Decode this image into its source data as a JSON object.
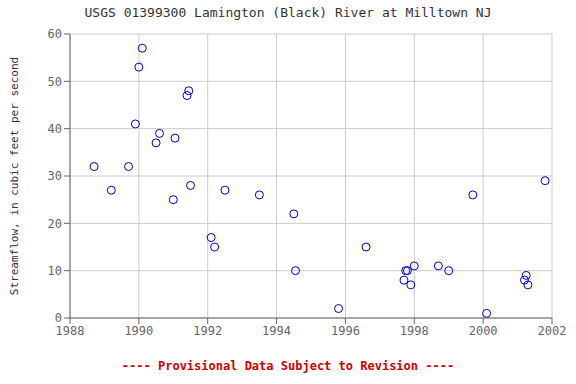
{
  "chart_data": {
    "type": "scatter",
    "title": "USGS 01399300 Lamington (Black) River at Milltown NJ",
    "y_label": "Streamflow, in cubic feet per second",
    "annotations": [
      {
        "text": "---- Provisional Data Subject to Revision ----",
        "color": "#CC0000"
      }
    ],
    "x": [
      1988.7,
      1989.2,
      1989.7,
      1989.9,
      1990.0,
      1990.1,
      1990.5,
      1990.6,
      1991.0,
      1991.05,
      1991.4,
      1991.45,
      1991.5,
      1992.1,
      1992.2,
      1992.5,
      1993.5,
      1994.5,
      1994.55,
      1995.8,
      1996.6,
      1997.7,
      1997.75,
      1997.8,
      1997.9,
      1998.0,
      1998.7,
      1999.0,
      1999.7,
      2000.1,
      2001.2,
      2001.25,
      2001.3,
      2001.8
    ],
    "values": [
      32,
      27,
      32,
      41,
      53,
      57,
      37,
      39,
      25,
      38,
      47,
      48,
      28,
      17,
      15,
      27,
      26,
      22,
      10,
      2,
      15,
      8,
      10,
      10,
      7,
      11,
      11,
      10,
      26,
      1,
      8,
      9,
      7,
      29
    ],
    "color": "#0000CC",
    "marker": "circle",
    "xlim": [
      1988,
      2002
    ],
    "ylim": [
      0,
      60
    ],
    "xticks": [
      1988,
      1990,
      1992,
      1994,
      1996,
      1998,
      2000,
      2002
    ],
    "yticks": [
      0,
      10,
      20,
      30,
      40,
      50,
      60
    ],
    "grid": true
  }
}
